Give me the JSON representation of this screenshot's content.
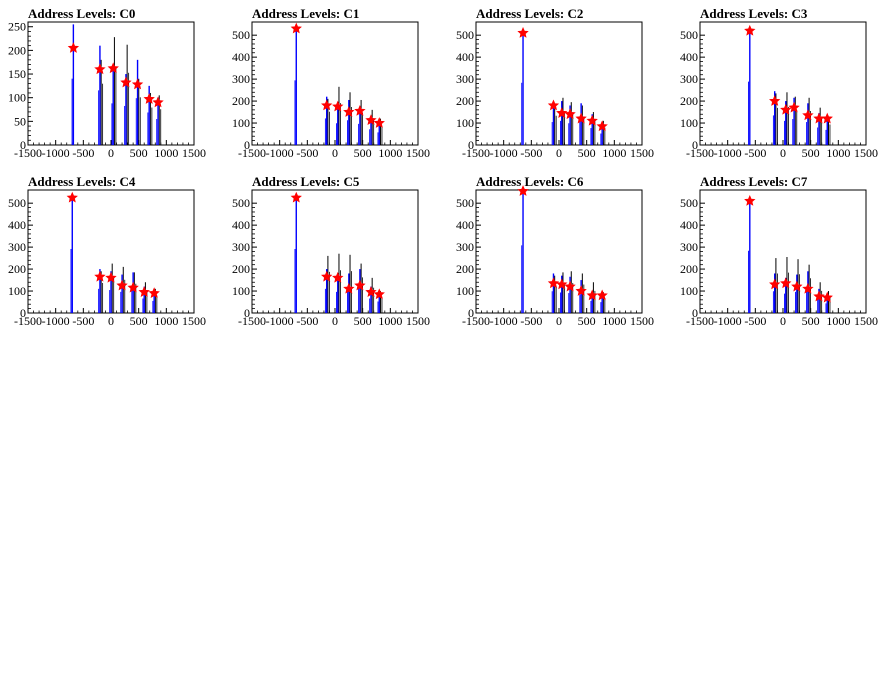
{
  "chart_data": [
    {
      "type": "histogram",
      "title": "Address Levels: C0",
      "xlim": [
        -1500,
        1500
      ],
      "ylim": [
        0,
        260
      ],
      "xticks": [
        -1500,
        -1000,
        -500,
        0,
        500,
        1000,
        1500
      ],
      "yticks": [
        0,
        50,
        100,
        150,
        200,
        250
      ],
      "markers": [
        [
          -680,
          205
        ],
        [
          -200,
          160
        ],
        [
          40,
          162
        ],
        [
          270,
          132
        ],
        [
          480,
          128
        ],
        [
          690,
          97
        ],
        [
          850,
          90
        ]
      ],
      "peaks_blue": [
        [
          -680,
          255
        ],
        [
          -200,
          210
        ],
        [
          40,
          160
        ],
        [
          270,
          150
        ],
        [
          480,
          180
        ],
        [
          690,
          125
        ],
        [
          850,
          100
        ]
      ],
      "peaks_black": [
        [
          -200,
          180
        ],
        [
          40,
          228
        ],
        [
          270,
          212
        ],
        [
          480,
          140
        ],
        [
          690,
          110
        ],
        [
          850,
          105
        ]
      ]
    },
    {
      "type": "histogram",
      "title": "Address Levels: C1",
      "xlim": [
        -1500,
        1500
      ],
      "ylim": [
        0,
        560
      ],
      "xticks": [
        -1500,
        -1000,
        -500,
        0,
        500,
        1000,
        1500
      ],
      "yticks": [
        0,
        100,
        200,
        300,
        400,
        500
      ],
      "markers": [
        [
          -700,
          530
        ],
        [
          -150,
          180
        ],
        [
          50,
          175
        ],
        [
          250,
          150
        ],
        [
          450,
          155
        ],
        [
          650,
          113
        ],
        [
          800,
          100
        ]
      ],
      "peaks_blue": [
        [
          -700,
          535
        ],
        [
          -150,
          220
        ],
        [
          50,
          180
        ],
        [
          250,
          205
        ],
        [
          450,
          175
        ],
        [
          650,
          130
        ],
        [
          800,
          105
        ]
      ],
      "peaks_black": [
        [
          -150,
          210
        ],
        [
          50,
          265
        ],
        [
          250,
          240
        ],
        [
          450,
          205
        ],
        [
          650,
          160
        ],
        [
          800,
          120
        ]
      ]
    },
    {
      "type": "histogram",
      "title": "Address Levels: C2",
      "xlim": [
        -1500,
        1500
      ],
      "ylim": [
        0,
        560
      ],
      "xticks": [
        -1500,
        -1000,
        -500,
        0,
        500,
        1000,
        1500
      ],
      "yticks": [
        0,
        100,
        200,
        300,
        400,
        500
      ],
      "markers": [
        [
          -650,
          510
        ],
        [
          -100,
          180
        ],
        [
          50,
          145
        ],
        [
          200,
          140
        ],
        [
          400,
          120
        ],
        [
          600,
          110
        ],
        [
          780,
          85
        ]
      ],
      "peaks_blue": [
        [
          -650,
          515
        ],
        [
          -100,
          190
        ],
        [
          50,
          200
        ],
        [
          200,
          180
        ],
        [
          400,
          190
        ],
        [
          600,
          140
        ],
        [
          780,
          95
        ]
      ],
      "peaks_black": [
        [
          -100,
          185
        ],
        [
          50,
          215
        ],
        [
          200,
          195
        ],
        [
          400,
          180
        ],
        [
          600,
          150
        ],
        [
          780,
          110
        ]
      ]
    },
    {
      "type": "histogram",
      "title": "Address Levels: C3",
      "xlim": [
        -1500,
        1500
      ],
      "ylim": [
        0,
        560
      ],
      "xticks": [
        -1500,
        -1000,
        -500,
        0,
        500,
        1000,
        1500
      ],
      "yticks": [
        0,
        100,
        200,
        300,
        400,
        500
      ],
      "markers": [
        [
          -600,
          520
        ],
        [
          -150,
          200
        ],
        [
          50,
          160
        ],
        [
          200,
          170
        ],
        [
          450,
          135
        ],
        [
          650,
          120
        ],
        [
          800,
          120
        ]
      ],
      "peaks_blue": [
        [
          -600,
          525
        ],
        [
          -150,
          245
        ],
        [
          50,
          200
        ],
        [
          200,
          215
        ],
        [
          450,
          190
        ],
        [
          650,
          145
        ],
        [
          800,
          125
        ]
      ],
      "peaks_black": [
        [
          -150,
          235
        ],
        [
          50,
          240
        ],
        [
          200,
          220
        ],
        [
          450,
          215
        ],
        [
          650,
          170
        ],
        [
          800,
          130
        ]
      ]
    },
    {
      "type": "histogram",
      "title": "Address Levels: C4",
      "xlim": [
        -1500,
        1500
      ],
      "ylim": [
        0,
        560
      ],
      "xticks": [
        -1500,
        -1000,
        -500,
        0,
        500,
        1000,
        1500
      ],
      "yticks": [
        0,
        100,
        200,
        300,
        400,
        500
      ],
      "markers": [
        [
          -700,
          525
        ],
        [
          -200,
          165
        ],
        [
          0,
          160
        ],
        [
          200,
          125
        ],
        [
          400,
          115
        ],
        [
          600,
          95
        ],
        [
          780,
          90
        ]
      ],
      "peaks_blue": [
        [
          -700,
          530
        ],
        [
          -200,
          200
        ],
        [
          0,
          190
        ],
        [
          200,
          175
        ],
        [
          400,
          185
        ],
        [
          600,
          120
        ],
        [
          780,
          100
        ]
      ],
      "peaks_black": [
        [
          -200,
          190
        ],
        [
          0,
          225
        ],
        [
          200,
          210
        ],
        [
          400,
          185
        ],
        [
          600,
          140
        ],
        [
          780,
          110
        ]
      ]
    },
    {
      "type": "histogram",
      "title": "Address Levels: C5",
      "xlim": [
        -1500,
        1500
      ],
      "ylim": [
        0,
        560
      ],
      "xticks": [
        -1500,
        -1000,
        -500,
        0,
        500,
        1000,
        1500
      ],
      "yticks": [
        0,
        100,
        200,
        300,
        400,
        500
      ],
      "markers": [
        [
          -700,
          525
        ],
        [
          -150,
          165
        ],
        [
          50,
          160
        ],
        [
          250,
          110
        ],
        [
          450,
          125
        ],
        [
          650,
          95
        ],
        [
          800,
          85
        ]
      ],
      "peaks_blue": [
        [
          -700,
          530
        ],
        [
          -150,
          200
        ],
        [
          50,
          175
        ],
        [
          250,
          180
        ],
        [
          450,
          200
        ],
        [
          650,
          120
        ],
        [
          800,
          95
        ]
      ],
      "peaks_black": [
        [
          -150,
          260
        ],
        [
          50,
          270
        ],
        [
          250,
          265
        ],
        [
          450,
          225
        ],
        [
          650,
          160
        ],
        [
          800,
          100
        ]
      ]
    },
    {
      "type": "histogram",
      "title": "Address Levels: C6",
      "xlim": [
        -1500,
        1500
      ],
      "ylim": [
        0,
        560
      ],
      "xticks": [
        -1500,
        -1000,
        -500,
        0,
        500,
        1000,
        1500
      ],
      "yticks": [
        0,
        100,
        200,
        300,
        400,
        500
      ],
      "markers": [
        [
          -650,
          555
        ],
        [
          -100,
          135
        ],
        [
          50,
          130
        ],
        [
          200,
          120
        ],
        [
          400,
          100
        ],
        [
          600,
          80
        ],
        [
          780,
          80
        ]
      ],
      "peaks_blue": [
        [
          -650,
          560
        ],
        [
          -100,
          180
        ],
        [
          50,
          170
        ],
        [
          200,
          165
        ],
        [
          400,
          150
        ],
        [
          600,
          100
        ],
        [
          780,
          90
        ]
      ],
      "peaks_black": [
        [
          -100,
          170
        ],
        [
          50,
          185
        ],
        [
          200,
          190
        ],
        [
          400,
          180
        ],
        [
          600,
          140
        ],
        [
          780,
          95
        ]
      ]
    },
    {
      "type": "histogram",
      "title": "Address Levels: C7",
      "xlim": [
        -1500,
        1500
      ],
      "ylim": [
        0,
        560
      ],
      "xticks": [
        -1500,
        -1000,
        -500,
        0,
        500,
        1000,
        1500
      ],
      "yticks": [
        0,
        100,
        200,
        300,
        400,
        500
      ],
      "markers": [
        [
          -600,
          510
        ],
        [
          -150,
          130
        ],
        [
          50,
          135
        ],
        [
          250,
          120
        ],
        [
          450,
          110
        ],
        [
          650,
          75
        ],
        [
          800,
          70
        ]
      ],
      "peaks_blue": [
        [
          -600,
          515
        ],
        [
          -150,
          180
        ],
        [
          50,
          160
        ],
        [
          250,
          175
        ],
        [
          450,
          190
        ],
        [
          650,
          110
        ],
        [
          800,
          80
        ]
      ],
      "peaks_black": [
        [
          -150,
          250
        ],
        [
          50,
          255
        ],
        [
          250,
          245
        ],
        [
          450,
          220
        ],
        [
          650,
          140
        ],
        [
          800,
          100
        ]
      ]
    }
  ],
  "colors": {
    "blue": "#0000ff",
    "black": "#000000",
    "marker": "#ff0000",
    "axis": "#000000"
  }
}
